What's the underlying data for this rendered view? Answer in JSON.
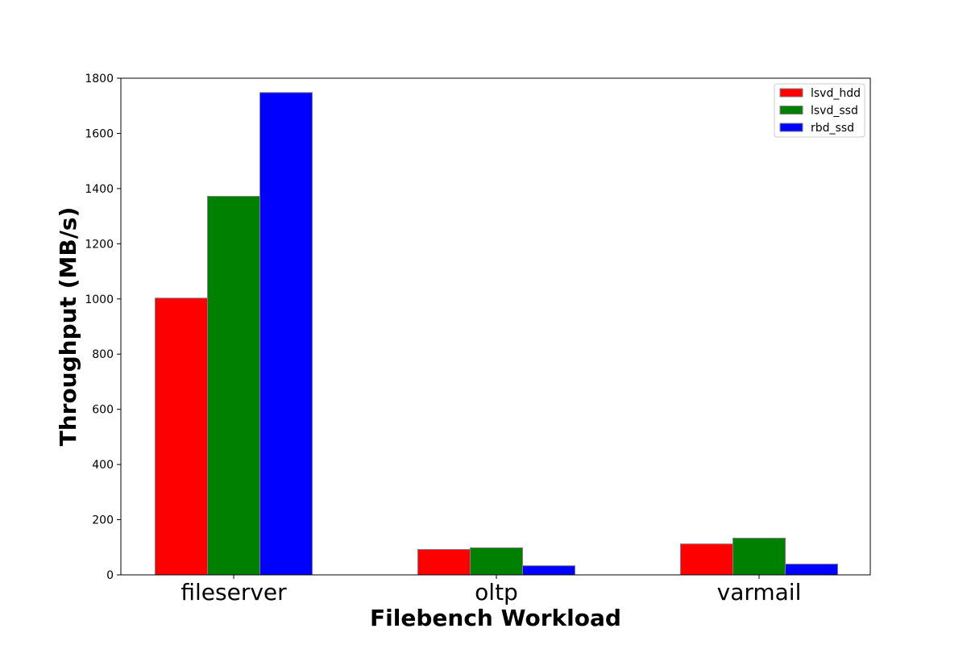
{
  "chart_data": {
    "type": "bar",
    "title": "",
    "xlabel": "Filebench Workload",
    "ylabel": "Throughput (MB/s)",
    "categories": [
      "fileserver",
      "oltp",
      "varmail"
    ],
    "series": [
      {
        "name": "lsvd_hdd",
        "color": "#ff0000",
        "values": [
          1003,
          92,
          112
        ]
      },
      {
        "name": "lsvd_ssd",
        "color": "#008000",
        "values": [
          1372,
          98,
          133
        ]
      },
      {
        "name": "rbd_ssd",
        "color": "#0000ff",
        "values": [
          1748,
          33,
          39
        ]
      }
    ],
    "ylim": [
      0,
      1800
    ],
    "yticks": [
      0,
      200,
      400,
      600,
      800,
      1000,
      1200,
      1400,
      1600,
      1800
    ],
    "grid": false,
    "legend_position": "top-right",
    "bar_edge_color": "#808080"
  }
}
